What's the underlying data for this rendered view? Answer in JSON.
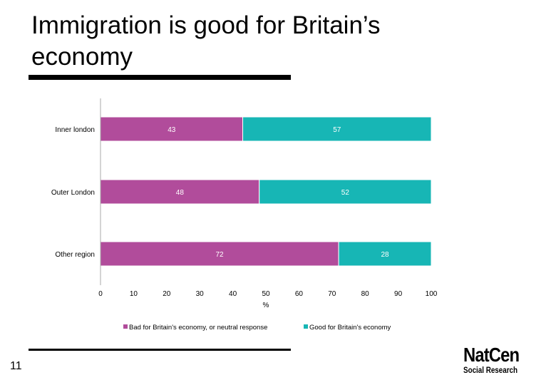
{
  "slide": {
    "title": "Immigration is good for Britain’s economy",
    "page_number": "11"
  },
  "logo": {
    "line1": "NatCen",
    "line2": "Social Research"
  },
  "colors": {
    "bad": "#B14C9B",
    "good": "#17B6B5"
  },
  "chart_data": {
    "type": "bar",
    "orientation": "horizontal",
    "stacked": true,
    "categories": [
      "Inner london",
      "Outer London",
      "Other region"
    ],
    "series": [
      {
        "name": "Bad for Britain's economy, or neutral response",
        "values": [
          43,
          48,
          72
        ],
        "color": "#B14C9B"
      },
      {
        "name": "Good for Britain's economy",
        "values": [
          57,
          52,
          28
        ],
        "color": "#17B6B5"
      }
    ],
    "xlim": [
      0,
      100
    ],
    "xticks": [
      0,
      10,
      20,
      30,
      40,
      50,
      60,
      70,
      80,
      90,
      100
    ],
    "xlabel": "%",
    "title": "",
    "legend_position": "bottom",
    "grid": false
  }
}
